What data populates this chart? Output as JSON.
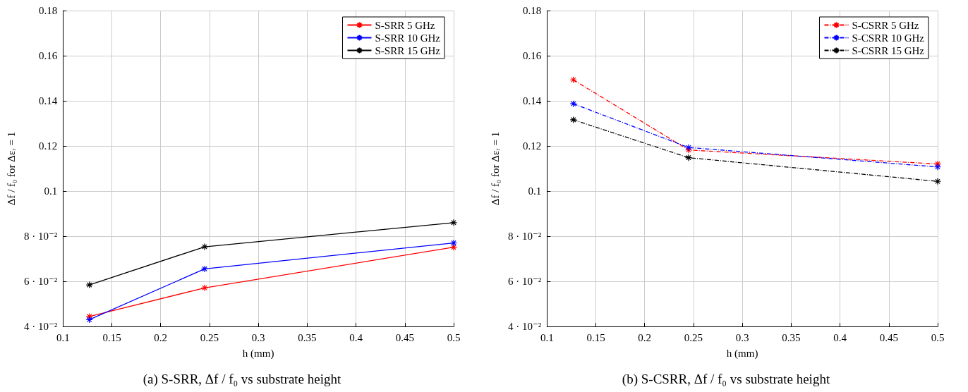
{
  "chart_data": [
    {
      "type": "line",
      "title": "(a) S-SRR, Δf / f₀ vs substrate height",
      "xlabel": "h (mm)",
      "ylabel": "Δf / f₀ for Δεᵣ = 1",
      "x": [
        0.127,
        0.245,
        0.5
      ],
      "series": [
        {
          "name": "S-SRR 5 GHz",
          "color": "#ff0000",
          "values": [
            0.0444,
            0.0571,
            0.0751
          ]
        },
        {
          "name": "S-SRR 10 GHz",
          "color": "#0000ff",
          "values": [
            0.043,
            0.0655,
            0.077
          ]
        },
        {
          "name": "S-SRR 15 GHz",
          "color": "#000000",
          "values": [
            0.0584,
            0.0753,
            0.086
          ]
        }
      ],
      "xlim": [
        0.1,
        0.5
      ],
      "xticks": [
        0.1,
        0.15,
        0.2,
        0.25,
        0.3,
        0.35,
        0.4,
        0.45,
        0.5
      ],
      "ylim": [
        0.04,
        0.18
      ],
      "yticks": [
        {
          "value": 0.04,
          "label": "4 · 10⁻²"
        },
        {
          "value": 0.06,
          "label": "6 · 10⁻²"
        },
        {
          "value": 0.08,
          "label": "8 · 10⁻²"
        },
        0.1,
        0.12,
        0.14,
        0.16,
        0.18
      ],
      "grid": true,
      "legend": "top right",
      "marker": "cross",
      "line_style": "solid"
    },
    {
      "type": "line",
      "title": "(b) S-CSRR, Δf / f₀ vs substrate height",
      "xlabel": "h (mm)",
      "ylabel": "Δf / f₀ for Δεᵣ = 1",
      "x": [
        0.127,
        0.245,
        0.5
      ],
      "series": [
        {
          "name": "S-CSRR 5 GHz",
          "color": "#ff0000",
          "values": [
            0.1493,
            0.1182,
            0.112
          ]
        },
        {
          "name": "S-CSRR 10 GHz",
          "color": "#0000ff",
          "values": [
            0.1387,
            0.1193,
            0.1107
          ]
        },
        {
          "name": "S-CSRR 15 GHz",
          "color": "#000000",
          "values": [
            0.1316,
            0.1148,
            0.1043
          ]
        }
      ],
      "xlim": [
        0.1,
        0.5
      ],
      "xticks": [
        0.1,
        0.15,
        0.2,
        0.25,
        0.3,
        0.35,
        0.4,
        0.45,
        0.5
      ],
      "ylim": [
        0.04,
        0.18
      ],
      "yticks": [
        {
          "value": 0.04,
          "label": "4 · 10⁻²"
        },
        {
          "value": 0.06,
          "label": "6 · 10⁻²"
        },
        {
          "value": 0.08,
          "label": "8 · 10⁻²"
        },
        0.1,
        0.12,
        0.14,
        0.16,
        0.18
      ],
      "grid": true,
      "legend": "top right",
      "marker": "cross",
      "line_style": "dashed"
    }
  ]
}
